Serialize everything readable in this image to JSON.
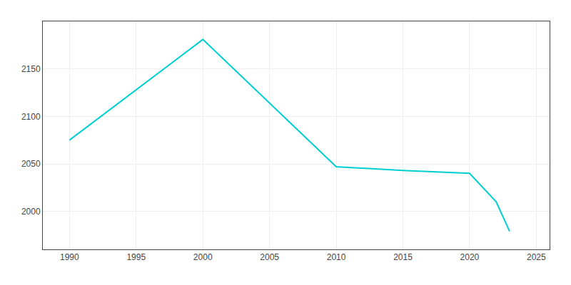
{
  "chart_data": {
    "type": "line",
    "x": [
      1990,
      2000,
      2010,
      2015,
      2020,
      2022,
      2023
    ],
    "values": [
      2075,
      2181,
      2047,
      2043,
      2040,
      2010,
      1979
    ],
    "color": "#00CED1",
    "xlim": [
      1988,
      2026
    ],
    "ylim": [
      1960,
      2200
    ],
    "xticks": [
      1990,
      1995,
      2000,
      2005,
      2010,
      2015,
      2020,
      2025
    ],
    "yticks": [
      2000,
      2050,
      2100,
      2150
    ],
    "grid": true
  }
}
